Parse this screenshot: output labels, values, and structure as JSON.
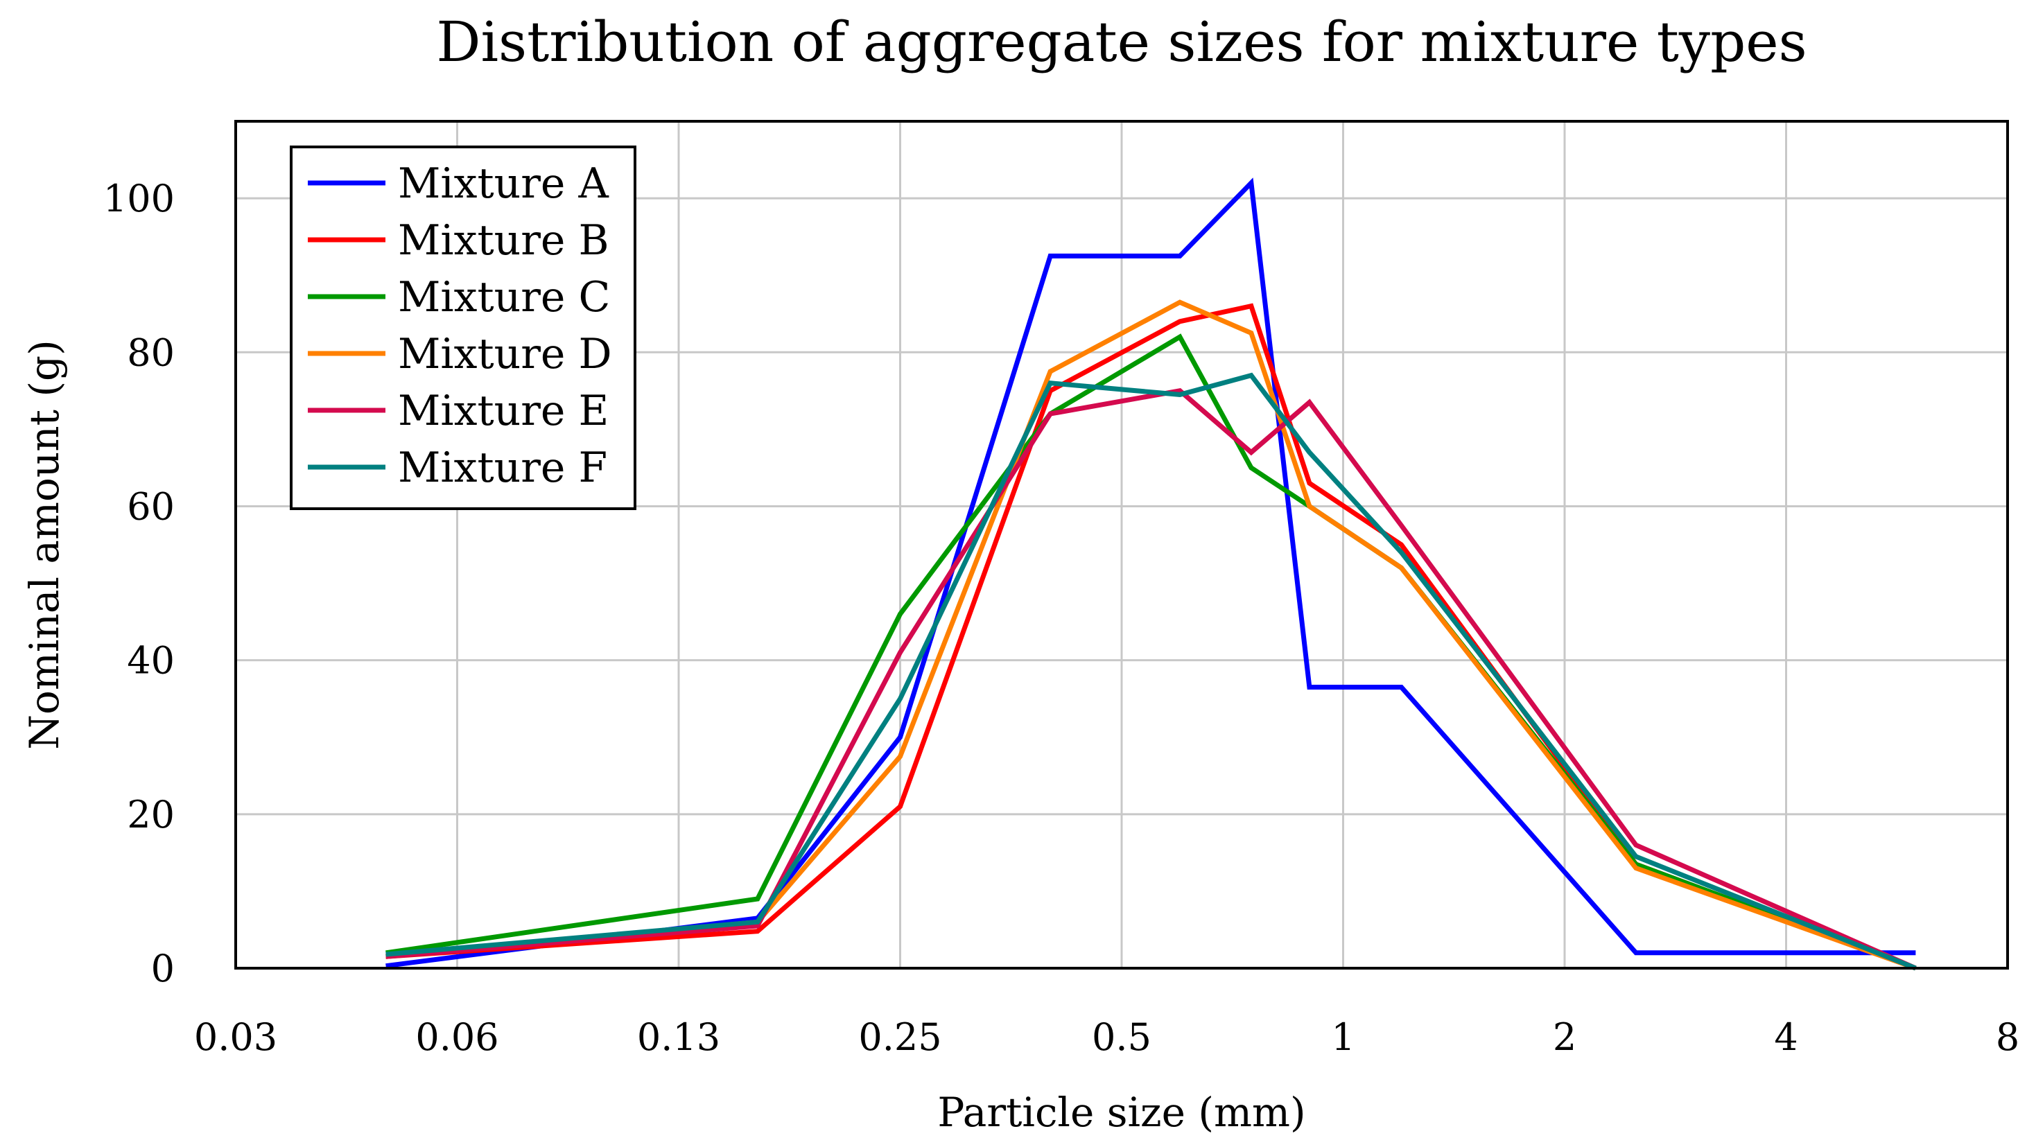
{
  "chart_data": {
    "type": "line",
    "title": "Distribution of aggregate sizes for mixture types",
    "xlabel": "Particle size (mm)",
    "ylabel": "Nominal amount (g)",
    "x_scale": "log2",
    "xlim": [
      0.03125,
      8
    ],
    "ylim": [
      0,
      110
    ],
    "x_ticks": [
      0.03125,
      0.0625,
      0.125,
      0.25,
      0.5,
      1,
      2,
      4,
      8
    ],
    "x_tick_labels": [
      "0.03",
      "0.06",
      "0.13",
      "0.25",
      "0.5",
      "1",
      "2",
      "4",
      "8"
    ],
    "y_ticks": [
      0,
      20,
      40,
      60,
      80,
      100
    ],
    "y_tick_labels": [
      "0",
      "20",
      "40",
      "60",
      "80",
      "100"
    ],
    "grid": true,
    "legend_position": "top-left",
    "x": [
      0.05,
      0.16,
      0.25,
      0.4,
      0.6,
      0.75,
      0.9,
      1.2,
      2.5,
      6
    ],
    "series": [
      {
        "name": "Mixture A",
        "color": "#0000ff",
        "values": [
          0.3,
          6.5,
          30,
          92.5,
          92.5,
          102,
          36.5,
          36.5,
          2,
          2
        ]
      },
      {
        "name": "Mixture B",
        "color": "#ff0000",
        "values": [
          1.5,
          4.8,
          21,
          75,
          84,
          86,
          63,
          55,
          13.5,
          0
        ]
      },
      {
        "name": "Mixture C",
        "color": "#009900",
        "values": [
          2,
          9,
          46,
          72,
          82,
          65,
          60,
          52,
          13.5,
          0
        ]
      },
      {
        "name": "Mixture D",
        "color": "#ff8000",
        "values": [
          1.5,
          6,
          27.5,
          77.5,
          86.5,
          82.5,
          60,
          52,
          13,
          0
        ]
      },
      {
        "name": "Mixture E",
        "color": "#d40a4e",
        "values": [
          1.5,
          5.5,
          41,
          72,
          75,
          67,
          73.5,
          57.5,
          16,
          0
        ]
      },
      {
        "name": "Mixture F",
        "color": "#008080",
        "values": [
          1.8,
          6,
          35,
          76,
          74.5,
          77,
          67,
          54,
          14.5,
          0
        ]
      }
    ]
  }
}
